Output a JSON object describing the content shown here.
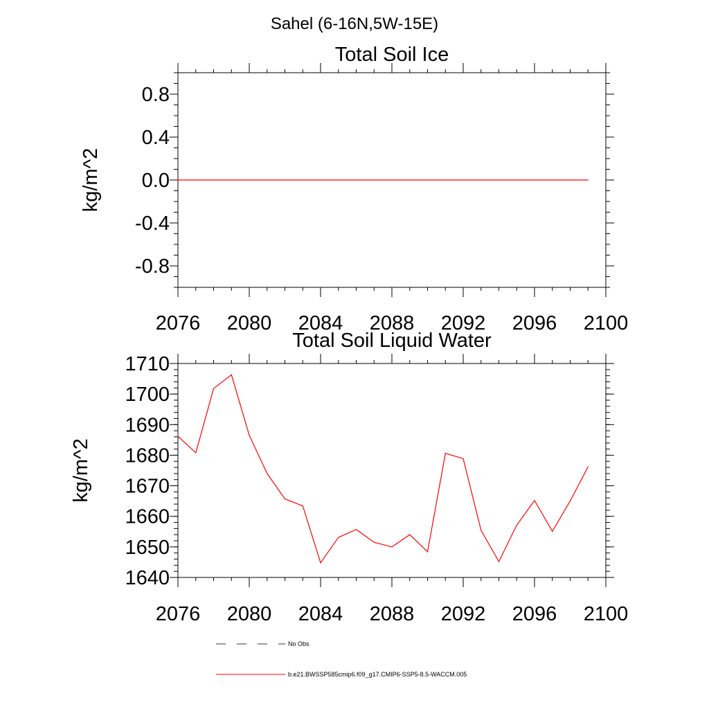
{
  "figure": {
    "suptitle": "Sahel (6-16N,5W-15E)"
  },
  "legend": {
    "placement": "bottom",
    "entries": [
      {
        "label": "No Obs",
        "style": "dashed",
        "color": "#2b2b7a"
      },
      {
        "label": "b.e21.BWSSP585cmip6.f09_g17.CMIP6-SSP5-8.5-WACCM.005",
        "style": "solid",
        "color": "#ff0000"
      }
    ]
  },
  "chart_data": [
    {
      "type": "line",
      "title": "Total Soil Ice",
      "xlabel": "",
      "ylabel": "kg/m^2",
      "xlim": [
        2076,
        2100
      ],
      "ylim": [
        -1.0,
        1.0
      ],
      "x_ticks": [
        2076,
        2080,
        2084,
        2088,
        2092,
        2096,
        2100
      ],
      "y_ticks": [
        "0.8",
        "0.4",
        "0.0",
        "-0.4",
        "-0.8"
      ],
      "y_tick_values": [
        0.8,
        0.4,
        0.0,
        -0.4,
        -0.8
      ],
      "grid": false,
      "series": [
        {
          "name": "b.e21.BWSSP585cmip6.f09_g17.CMIP6-SSP5-8.5-WACCM.005",
          "color": "#ff0000",
          "x": [
            2076,
            2077,
            2078,
            2079,
            2080,
            2081,
            2082,
            2083,
            2084,
            2085,
            2086,
            2087,
            2088,
            2089,
            2090,
            2091,
            2092,
            2093,
            2094,
            2095,
            2096,
            2097,
            2098,
            2099
          ],
          "y": [
            0,
            0,
            0,
            0,
            0,
            0,
            0,
            0,
            0,
            0,
            0,
            0,
            0,
            0,
            0,
            0,
            0,
            0,
            0,
            0,
            0,
            0,
            0,
            0
          ]
        }
      ]
    },
    {
      "type": "line",
      "title": "Total Soil Liquid Water",
      "xlabel": "",
      "ylabel": "kg/m^2",
      "xlim": [
        2076,
        2100
      ],
      "ylim": [
        1640,
        1710
      ],
      "x_ticks": [
        2076,
        2080,
        2084,
        2088,
        2092,
        2096,
        2100
      ],
      "y_ticks": [
        "1710",
        "1700",
        "1690",
        "1680",
        "1670",
        "1660",
        "1650",
        "1640"
      ],
      "y_tick_values": [
        1710,
        1700,
        1690,
        1680,
        1670,
        1660,
        1650,
        1640
      ],
      "grid": false,
      "series": [
        {
          "name": "b.e21.BWSSP585cmip6.f09_g17.CMIP6-SSP5-8.5-WACCM.005",
          "color": "#ff0000",
          "x": [
            2076,
            2077,
            2078,
            2079,
            2080,
            2081,
            2082,
            2083,
            2084,
            2085,
            2086,
            2087,
            2088,
            2089,
            2090,
            2091,
            2092,
            2093,
            2094,
            2095,
            2096,
            2097,
            2098,
            2099
          ],
          "y": [
            1686.2,
            1680.8,
            1701.8,
            1706.3,
            1686.5,
            1674.0,
            1665.7,
            1663.4,
            1644.8,
            1653.1,
            1655.7,
            1651.5,
            1650.0,
            1654.0,
            1648.4,
            1680.6,
            1678.9,
            1655.4,
            1645.2,
            1657.1,
            1665.2,
            1655.1,
            1665.0,
            1676.2
          ]
        }
      ]
    }
  ]
}
